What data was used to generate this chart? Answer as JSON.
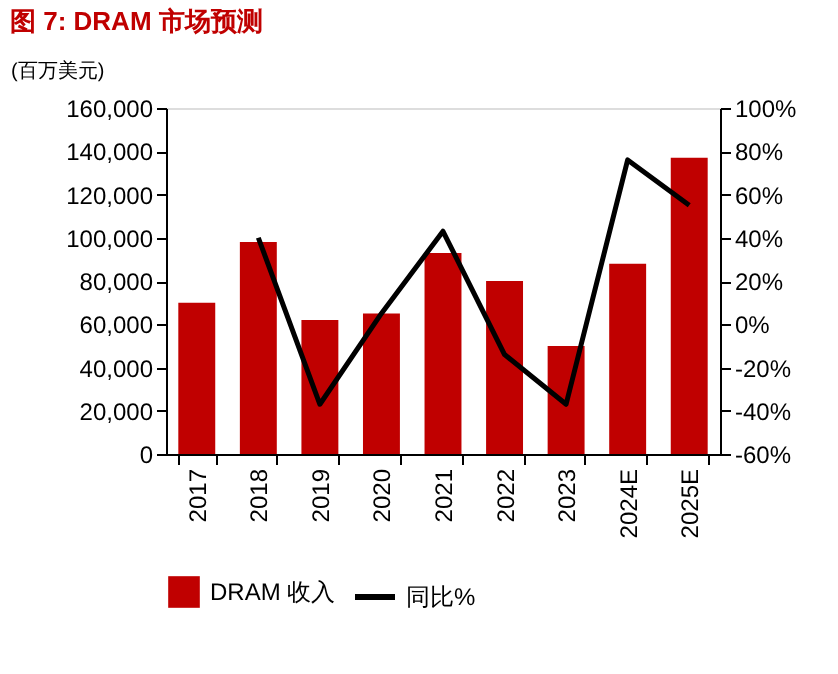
{
  "chart_data": {
    "type": "bar",
    "title": "图 7: DRAM 市场预测",
    "ylabel": "(百万美元)",
    "categories": [
      "2017",
      "2018",
      "2019",
      "2020",
      "2021",
      "2022",
      "2023",
      "2024E",
      "2025E"
    ],
    "series": [
      {
        "name": "DRAM 收入",
        "color": "#c00000",
        "values": [
          70000,
          98000,
          62000,
          65000,
          93000,
          80000,
          50000,
          88000,
          137000
        ]
      },
      {
        "name": "同比%",
        "type": "line",
        "axis": "y2",
        "color": "#000000",
        "values": [
          null,
          40,
          -37,
          5,
          43,
          -14,
          -37,
          76,
          55
        ]
      }
    ],
    "ylim": [
      0,
      160000
    ],
    "yticks": [
      0,
      {
        "value": 20000,
        "label": "20,000"
      },
      {
        "value": 40000,
        "label": "40,000"
      },
      {
        "value": 60000,
        "label": "60,000"
      },
      {
        "value": 80000,
        "label": "80,000"
      },
      {
        "value": 100000,
        "label": "100,000"
      },
      {
        "value": 120000,
        "label": "120,000"
      },
      {
        "value": 140000,
        "label": "140,000"
      },
      {
        "value": 160000,
        "label": "160,000"
      }
    ],
    "y2lim": [
      -60,
      100
    ],
    "y2ticks": [
      {
        "value": -60,
        "label": "-60%"
      },
      {
        "value": -40,
        "label": "-40%"
      },
      {
        "value": -20,
        "label": "-20%"
      },
      {
        "value": 0,
        "label": "0%"
      },
      {
        "value": 20,
        "label": "20%"
      },
      {
        "value": 40,
        "label": "40%"
      },
      {
        "value": 60,
        "label": "60%"
      },
      {
        "value": 80,
        "label": "80%"
      },
      {
        "value": 100,
        "label": "100%"
      }
    ],
    "grid": false,
    "legend": "bottom",
    "marker": "none",
    "line_style": "solid"
  }
}
